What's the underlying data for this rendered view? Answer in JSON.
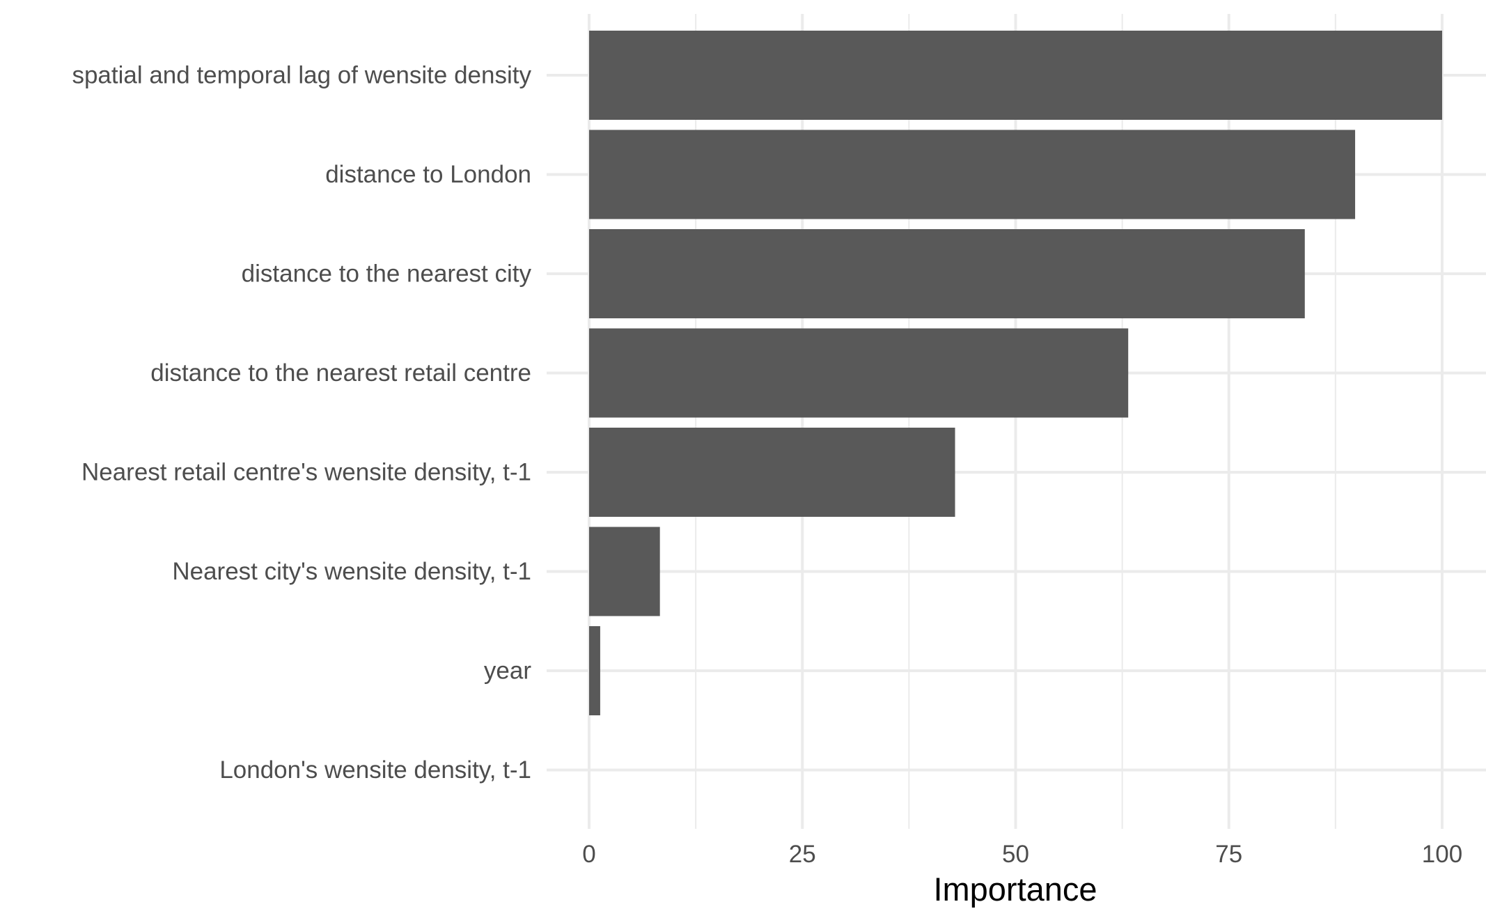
{
  "chart_data": {
    "type": "bar",
    "orientation": "horizontal",
    "categories": [
      "spatial and temporal lag of wensite density",
      "distance to London",
      "distance to the nearest city",
      "distance to the nearest retail centre",
      "Nearest retail centre's wensite density, t-1",
      "Nearest city's wensite density, t-1",
      "year",
      "London's wensite density, t-1"
    ],
    "values": [
      100,
      89.8,
      83.9,
      63.2,
      42.9,
      8.3,
      1.3,
      0
    ],
    "title": "",
    "xlabel": "Importance",
    "ylabel": "",
    "xlim": [
      0,
      100
    ],
    "x_ticks": [
      "0",
      "25",
      "50",
      "75",
      "100"
    ],
    "grid": true,
    "legend": "none",
    "bar_color": "#595959",
    "grid_color": "#ebebeb"
  }
}
